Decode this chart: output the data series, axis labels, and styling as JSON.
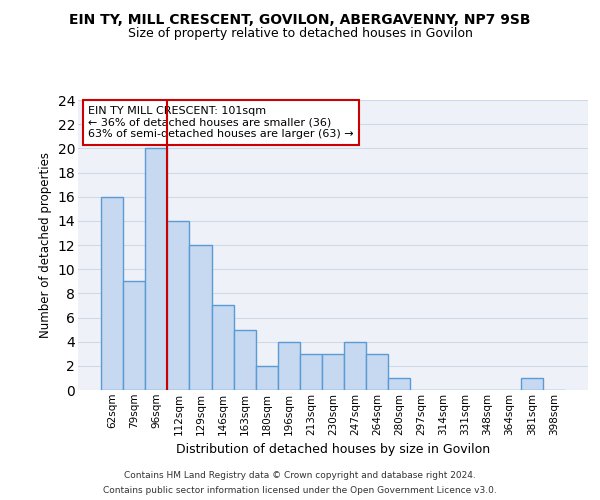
{
  "title": "EIN TY, MILL CRESCENT, GOVILON, ABERGAVENNY, NP7 9SB",
  "subtitle": "Size of property relative to detached houses in Govilon",
  "xlabel": "Distribution of detached houses by size in Govilon",
  "ylabel": "Number of detached properties",
  "categories": [
    "62sqm",
    "79sqm",
    "96sqm",
    "112sqm",
    "129sqm",
    "146sqm",
    "163sqm",
    "180sqm",
    "196sqm",
    "213sqm",
    "230sqm",
    "247sqm",
    "264sqm",
    "280sqm",
    "297sqm",
    "314sqm",
    "331sqm",
    "348sqm",
    "364sqm",
    "381sqm",
    "398sqm"
  ],
  "values": [
    16,
    9,
    20,
    14,
    12,
    7,
    5,
    2,
    4,
    3,
    3,
    4,
    3,
    1,
    0,
    0,
    0,
    0,
    0,
    1,
    0
  ],
  "bar_color": "#c6d9f0",
  "bar_edge_color": "#5b9bd5",
  "bar_edge_width": 1.0,
  "property_line_x": 2.5,
  "property_line_color": "#cc0000",
  "annotation_text": "EIN TY MILL CRESCENT: 101sqm\n← 36% of detached houses are smaller (36)\n63% of semi-detached houses are larger (63) →",
  "annotation_box_color": "#ffffff",
  "annotation_box_edge_color": "#cc0000",
  "ylim": [
    0,
    24
  ],
  "yticks": [
    0,
    2,
    4,
    6,
    8,
    10,
    12,
    14,
    16,
    18,
    20,
    22,
    24
  ],
  "grid_color": "#d0d8e8",
  "background_color": "#eef2f8",
  "footer_line1": "Contains HM Land Registry data © Crown copyright and database right 2024.",
  "footer_line2": "Contains public sector information licensed under the Open Government Licence v3.0."
}
